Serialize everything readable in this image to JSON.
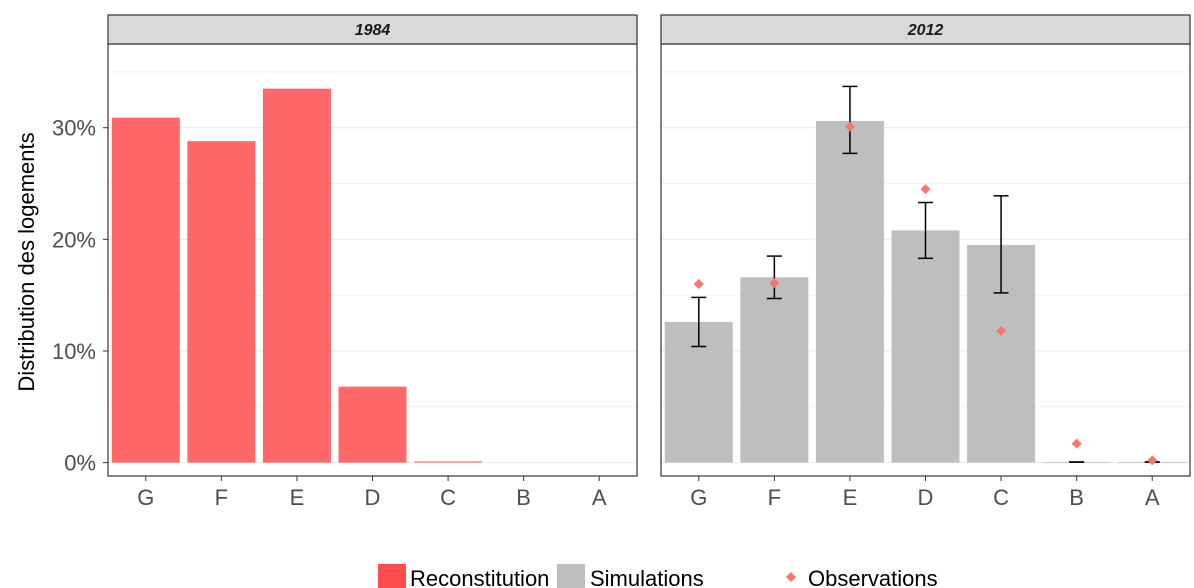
{
  "chart_data": {
    "type": "bar",
    "ylabel": "Distribution des logements",
    "yticks": [
      0,
      10,
      20,
      30
    ],
    "ytick_labels": [
      "0%",
      "10%",
      "20%",
      "30%"
    ],
    "ylim": [
      -1.2,
      37.5
    ],
    "grid": true,
    "legend_position": "bottom",
    "categories": [
      "G",
      "F",
      "E",
      "D",
      "C",
      "B",
      "A"
    ],
    "colors": {
      "reconstitution": "#ff4d4d",
      "simulations": "#bebebe",
      "observations": "#f8766d",
      "strip_background": "#d9d9d9",
      "gridline": "#ebebeb"
    },
    "panels": [
      {
        "title": "1984",
        "series": [
          {
            "name": "Reconstitution",
            "values": [
              30.9,
              28.8,
              33.5,
              6.8,
              0.1,
              0,
              0
            ]
          }
        ]
      },
      {
        "title": "2012",
        "series": [
          {
            "name": "Simulations",
            "values": [
              12.6,
              16.6,
              30.6,
              20.8,
              19.5,
              0.05,
              0.05
            ],
            "error_low": [
              10.4,
              14.7,
              27.7,
              18.3,
              15.2,
              0.05,
              0.05
            ],
            "error_high": [
              14.8,
              18.5,
              33.7,
              23.3,
              23.9,
              0.05,
              0.05
            ]
          },
          {
            "name": "Observations",
            "values": [
              16.0,
              16.1,
              30.1,
              24.5,
              11.8,
              1.7,
              0.2
            ]
          }
        ]
      }
    ],
    "legend": [
      {
        "label": "Reconstitution",
        "symbol": "rect",
        "color": "#ff4d4d"
      },
      {
        "label": "Simulations",
        "symbol": "rect",
        "color": "#bebebe"
      },
      {
        "label": "Observations",
        "symbol": "diamond",
        "color": "#f8766d"
      }
    ]
  }
}
